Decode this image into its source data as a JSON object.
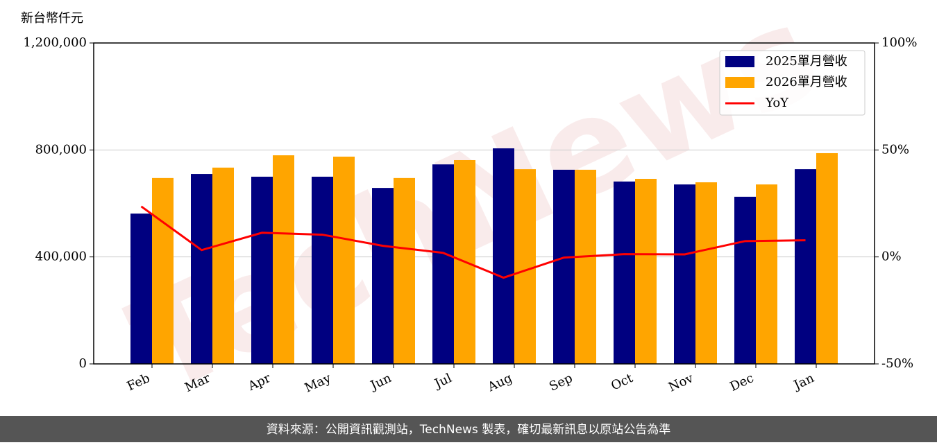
{
  "chart_data": {
    "type": "bar",
    "y_label": "新台幣仟元",
    "watermark": "TechNews",
    "source_note": "資料來源：公開資訊觀測站，TechNews 製表，確切最新訊息以原站公告為準",
    "categories": [
      "Feb",
      "Mar",
      "Apr",
      "May",
      "Jun",
      "Jul",
      "Aug",
      "Sep",
      "Oct",
      "Nov",
      "Dec",
      "Jan"
    ],
    "series": [
      {
        "name": "2025單月營收",
        "type": "bar",
        "color": "#000080",
        "values": [
          562000,
          710000,
          700000,
          700000,
          658000,
          746000,
          806000,
          726000,
          682000,
          671000,
          625000,
          728000
        ]
      },
      {
        "name": "2026單月營收",
        "type": "bar",
        "color": "#FFA500",
        "values": [
          695000,
          734000,
          780000,
          775000,
          695000,
          762000,
          728000,
          726000,
          692000,
          679000,
          671000,
          788000
        ]
      },
      {
        "name": "YoY",
        "type": "line",
        "axis": "y2",
        "color": "#FF0000",
        "values": [
          23.6,
          3.2,
          11.3,
          10.4,
          5.2,
          1.9,
          -9.7,
          -0.3,
          1.3,
          1.2,
          7.4,
          7.8
        ]
      }
    ],
    "ylim": [
      0,
      1200000
    ],
    "yticks": [
      0,
      {
        "value": 400000,
        "label": "400,000"
      },
      {
        "value": 800000,
        "label": "800,000"
      },
      {
        "value": 1200000,
        "label": "1,200,000"
      }
    ],
    "y2lim": [
      -50,
      100
    ],
    "y2ticks": [
      {
        "value": -50,
        "label": "-50%"
      },
      {
        "value": 0,
        "label": "0%"
      },
      {
        "value": 50,
        "label": "50%"
      },
      {
        "value": 100,
        "label": "100%"
      }
    ],
    "grid": true,
    "legend": "upper right"
  }
}
